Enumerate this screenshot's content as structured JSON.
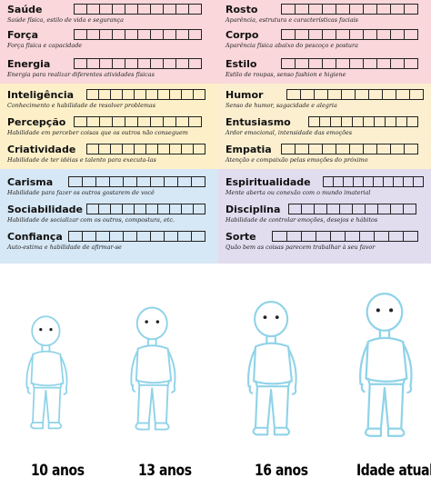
{
  "sheet": {
    "band_colors": [
      "#f9d7da",
      "#fdf0c9",
      "#fbefd0",
      "#d6e7f5",
      "#e2dcef"
    ],
    "box_count": 10,
    "left": [
      {
        "name": "Saúde",
        "desc": "Saúde física, estilo de vida e segurança"
      },
      {
        "name": "Força",
        "desc": "Força física e capacidade"
      },
      {
        "name": "Energia",
        "desc": "Energia para realizar diferentes atividades físicas"
      },
      {
        "name": "Inteligência",
        "desc": "Conhecimento e habilidade de resolver problemas"
      },
      {
        "name": "Percepção",
        "desc": "Habilidade em perceber coisas que os outros não conseguem"
      },
      {
        "name": "Criatividade",
        "desc": "Habilidade de ter idéias e talento para executa-las"
      },
      {
        "name": "Carisma",
        "desc": "Habilidade para fazer os outros gostarem de você"
      },
      {
        "name": "Sociabilidade",
        "desc": "Habilidade de socializar com os outros, compostura, etc."
      },
      {
        "name": "Confiança",
        "desc": "Auto-estima e habilidade de afirmar-se"
      }
    ],
    "right": [
      {
        "name": "Rosto",
        "desc": "Aparência, estrutura e características faciais"
      },
      {
        "name": "Corpo",
        "desc": "Aparência física abaixo do pescoço e postura"
      },
      {
        "name": "Estilo",
        "desc": "Estilo de roupas, senso fashion e higiene"
      },
      {
        "name": "Humor",
        "desc": "Senso de humor, sagacidade e alegria"
      },
      {
        "name": "Entusiasmo",
        "desc": "Ardor emocional, intensidade das emoções"
      },
      {
        "name": "Empatia",
        "desc": "Atenção e compaixão pelas emoções do próximo"
      },
      {
        "name": "Espiritualidade",
        "desc": "Mente aberta ou conexão com o mundo imaterial"
      },
      {
        "name": "Disciplina",
        "desc": "Habilidade de controlar emoções, desejos e hábitos"
      },
      {
        "name": "Sorte",
        "desc": "Quão bem as coisas parecem trabalhar à seu favor"
      }
    ]
  },
  "figures": {
    "stroke_color": "#8fd3e8",
    "ages": [
      "10 anos",
      "13 anos",
      "16 anos",
      "Idade atual"
    ]
  }
}
